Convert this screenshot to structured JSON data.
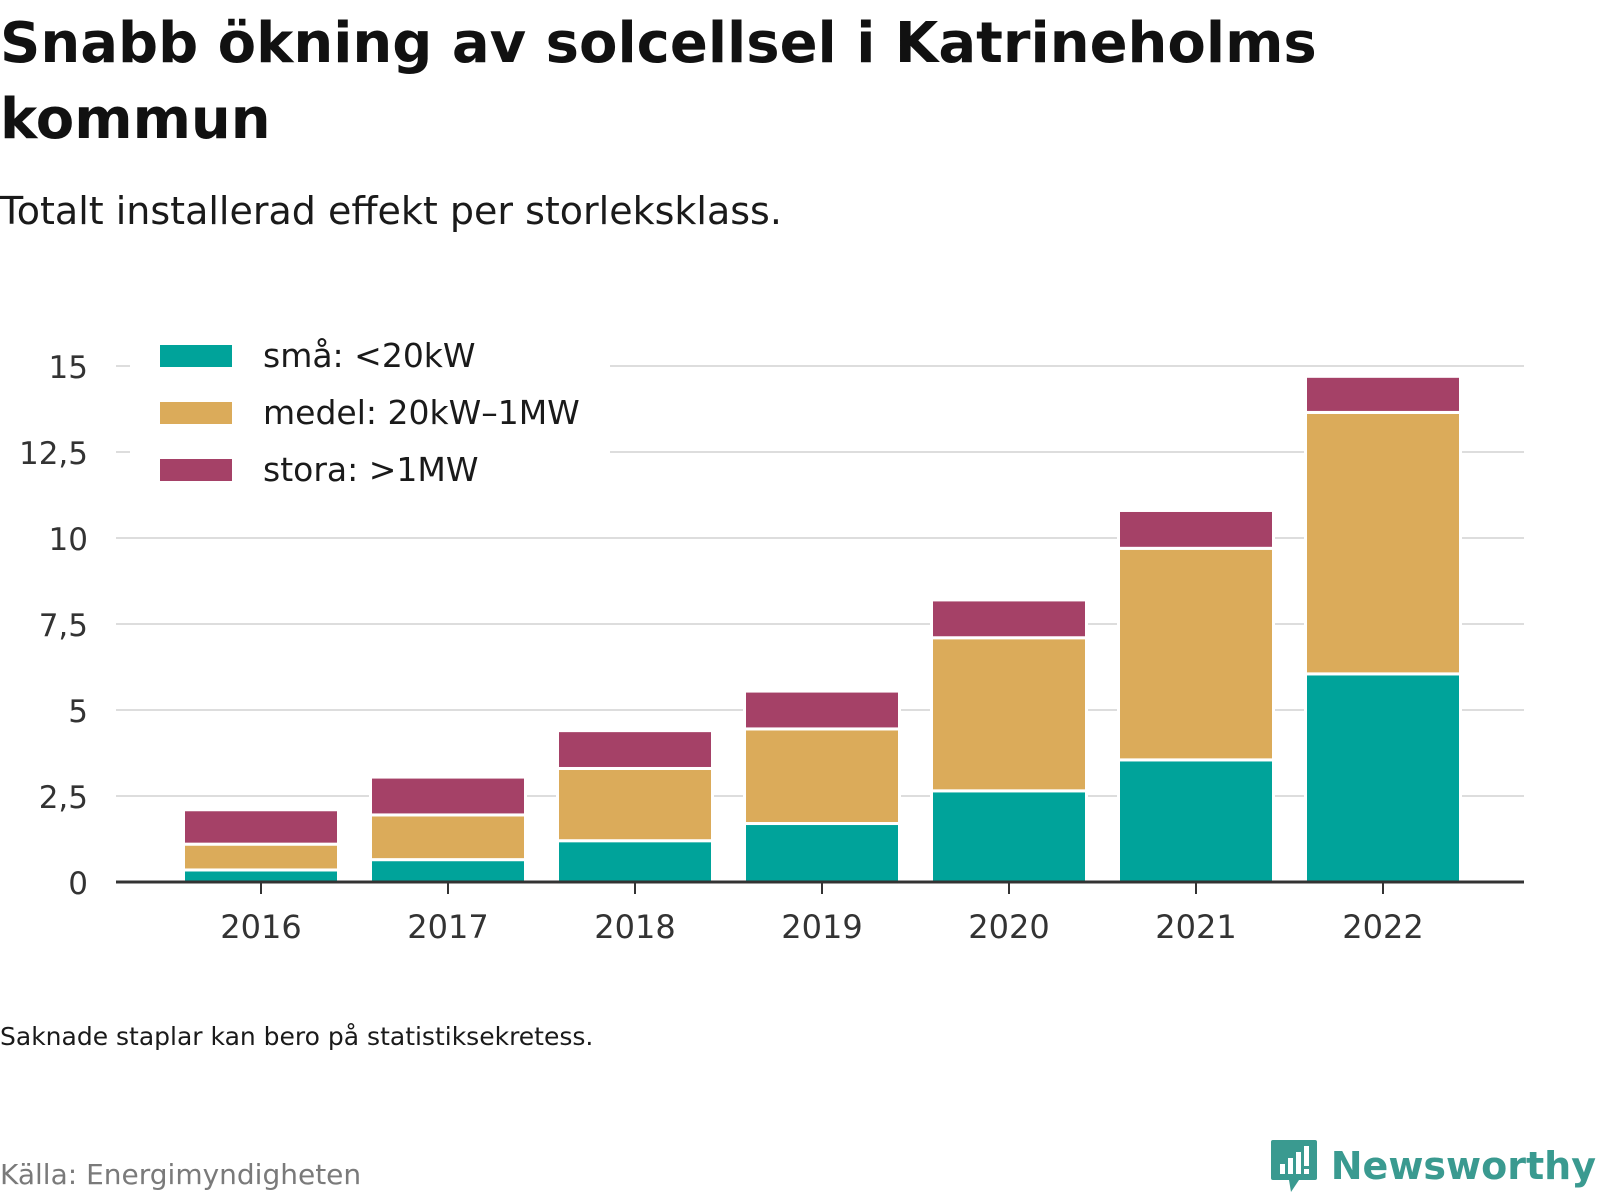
{
  "title": "Snabb ökning av solcellsel i Katrineholms kommun",
  "subtitle": "Totalt installerad effekt per storleksklass.",
  "note": "Saknade staplar kan bero på statistiksekretess.",
  "source": "Källa: Energimyndigheten",
  "brand": "Newsworthy",
  "chart_data": {
    "type": "bar",
    "stacked": true,
    "categories": [
      "2016",
      "2017",
      "2018",
      "2019",
      "2020",
      "2021",
      "2022"
    ],
    "series": [
      {
        "name": "små: <20kW",
        "color": "#00a39a",
        "values": [
          0.35,
          0.65,
          1.2,
          1.7,
          2.65,
          3.55,
          6.05
        ]
      },
      {
        "name": "medel: 20kW–1MW",
        "color": "#dbab5a",
        "values": [
          0.75,
          1.3,
          2.1,
          2.75,
          4.45,
          6.15,
          7.6
        ]
      },
      {
        "name": "stora: >1MW",
        "color": "#a54167",
        "values": [
          1.0,
          1.1,
          1.1,
          1.1,
          1.1,
          1.1,
          1.05
        ]
      }
    ],
    "yticks": [
      "0",
      "2,5",
      "5",
      "7,5",
      "10",
      "12,5",
      "15"
    ],
    "ylim": [
      0,
      15
    ],
    "grid": true,
    "legend": "top-left"
  }
}
